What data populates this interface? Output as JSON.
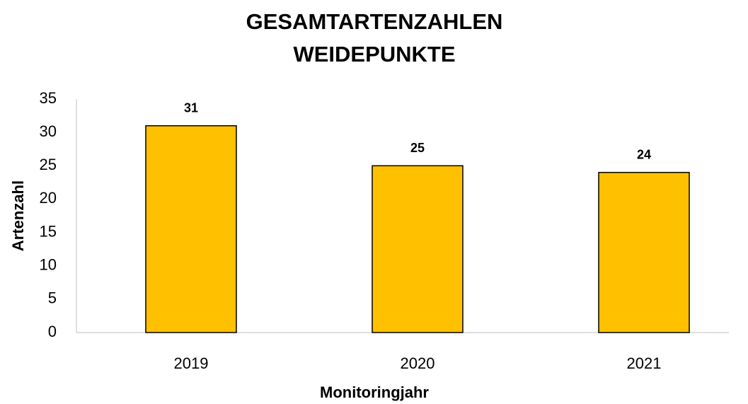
{
  "chart_data": {
    "type": "bar",
    "title": [
      "GESAMTARTENZAHLEN",
      "WEIDEPUNKTE"
    ],
    "x_label": "Monitoringjahr",
    "y_label": "Artenzahl",
    "categories": [
      "2019",
      "2020",
      "2021"
    ],
    "values": [
      31,
      25,
      24
    ],
    "color": "#ffc000",
    "ylim": [
      0,
      35
    ],
    "yticks": [
      0,
      5,
      10,
      15,
      20,
      25,
      30,
      35
    ],
    "grid": false
  }
}
